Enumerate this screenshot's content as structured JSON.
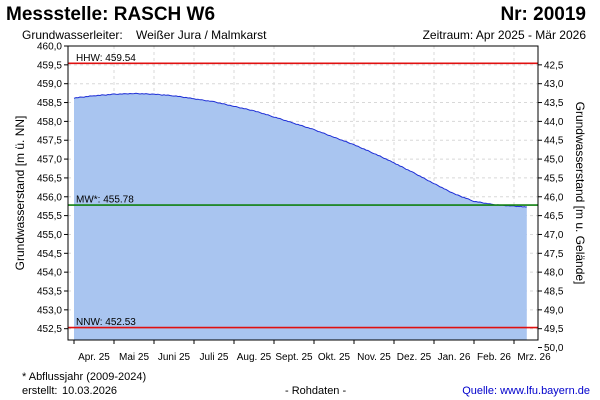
{
  "header": {
    "title": "Messstelle: RASCH W6",
    "nr": "Nr: 20019",
    "aquifer_label": "Grundwasserleiter:",
    "aquifer_value": "Weißer Jura / Malmkarst",
    "period": "Zeitraum: Apr 2025 - Mär 2026"
  },
  "footer": {
    "footnote": "* Abflussjahr (2009-2024)",
    "created_label": "erstellt:",
    "created_date": "10.03.2026",
    "data_status": "- Rohdaten -",
    "source_prefix": "Quelle:",
    "source_url": "www.lfu.bayern.de"
  },
  "chart_data": {
    "type": "area",
    "ylabel": "Grundwasserstand [m ü. NN]",
    "y2label": "Grundwasserstand [m u. Gelände]",
    "ylim": [
      452.2,
      460.0
    ],
    "y_ticks": [
      "460,0",
      "459,5",
      "459,0",
      "458,5",
      "458,0",
      "457,5",
      "457,0",
      "456,5",
      "456,0",
      "455,5",
      "455,0",
      "454,5",
      "454,0",
      "453,5",
      "453,0",
      "452,5"
    ],
    "y2_ticks": [
      "42,5",
      "43,0",
      "43,5",
      "44,0",
      "44,5",
      "45,0",
      "45,5",
      "46,0",
      "46,5",
      "47,0",
      "47,5",
      "48,0",
      "48,5",
      "49,0",
      "49,5",
      "50,0"
    ],
    "categories": [
      "Apr. 25",
      "Mai 25",
      "Juni 25",
      "Juli 25",
      "Aug. 25",
      "Sept. 25",
      "Okt. 25",
      "Nov. 25",
      "Dez. 25",
      "Jan. 26",
      "Feb. 26",
      "Mrz. 26"
    ],
    "x": [
      0,
      0.5,
      1,
      1.5,
      2,
      2.5,
      3,
      3.5,
      4,
      4.5,
      5,
      5.5,
      6,
      6.5,
      7,
      7.5,
      8,
      8.5,
      9,
      9.5,
      10,
      10.5,
      11,
      11.32
    ],
    "values": [
      458.62,
      458.68,
      458.72,
      458.74,
      458.72,
      458.68,
      458.6,
      458.52,
      458.4,
      458.28,
      458.12,
      457.95,
      457.78,
      457.58,
      457.38,
      457.15,
      456.9,
      456.63,
      456.35,
      456.08,
      455.88,
      455.79,
      455.75,
      455.73
    ],
    "series_color": "#1f2fd6",
    "fill_color": "#a9c5f0",
    "reference_lines": [
      {
        "label": "HHW: 459.54",
        "value": 459.54,
        "color": "#e01010"
      },
      {
        "label": "MW*: 455.78",
        "value": 455.78,
        "color": "#108010"
      },
      {
        "label": "NNW: 452.53",
        "value": 452.53,
        "color": "#e01010"
      }
    ],
    "grid": true
  }
}
